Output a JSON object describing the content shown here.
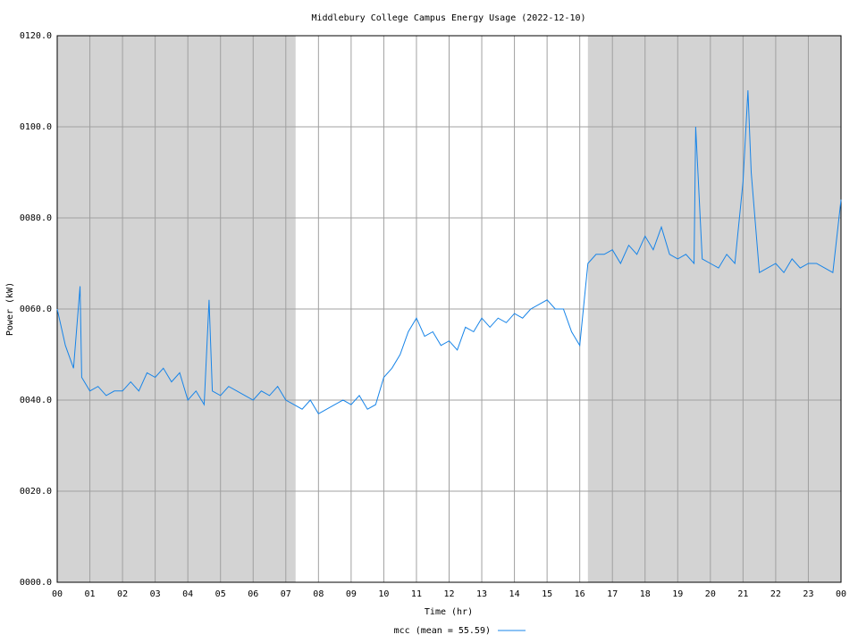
{
  "chart_data": {
    "type": "line",
    "title": "Middlebury College Campus Energy Usage (2022-12-10)",
    "x_label": "Time (hr)",
    "y_label": "Power (kW)",
    "xlim": [
      0,
      24
    ],
    "ylim": [
      0,
      120
    ],
    "xticks": [
      {
        "value": 0,
        "label": "00"
      },
      {
        "value": 1,
        "label": "01"
      },
      {
        "value": 2,
        "label": "02"
      },
      {
        "value": 3,
        "label": "03"
      },
      {
        "value": 4,
        "label": "04"
      },
      {
        "value": 5,
        "label": "05"
      },
      {
        "value": 6,
        "label": "06"
      },
      {
        "value": 7,
        "label": "07"
      },
      {
        "value": 8,
        "label": "08"
      },
      {
        "value": 9,
        "label": "09"
      },
      {
        "value": 10,
        "label": "10"
      },
      {
        "value": 11,
        "label": "11"
      },
      {
        "value": 12,
        "label": "12"
      },
      {
        "value": 13,
        "label": "13"
      },
      {
        "value": 14,
        "label": "14"
      },
      {
        "value": 15,
        "label": "15"
      },
      {
        "value": 16,
        "label": "16"
      },
      {
        "value": 17,
        "label": "17"
      },
      {
        "value": 18,
        "label": "18"
      },
      {
        "value": 19,
        "label": "19"
      },
      {
        "value": 20,
        "label": "20"
      },
      {
        "value": 21,
        "label": "21"
      },
      {
        "value": 22,
        "label": "22"
      },
      {
        "value": 23,
        "label": "23"
      },
      {
        "value": 24,
        "label": "00"
      }
    ],
    "yticks": [
      {
        "value": 0,
        "label": "0000.0"
      },
      {
        "value": 20,
        "label": "0020.0"
      },
      {
        "value": 40,
        "label": "0040.0"
      },
      {
        "value": 60,
        "label": "0060.0"
      },
      {
        "value": 80,
        "label": "0080.0"
      },
      {
        "value": 100,
        "label": "0100.0"
      },
      {
        "value": 120,
        "label": "0120.0"
      }
    ],
    "grid": true,
    "shaded_ranges": [
      [
        0,
        7.3
      ],
      [
        16.25,
        24
      ]
    ],
    "shade_color": "#d3d3d3",
    "x": [
      0,
      0.25,
      0.5,
      0.7,
      0.75,
      1,
      1.25,
      1.5,
      1.75,
      2,
      2.25,
      2.5,
      2.75,
      3,
      3.25,
      3.5,
      3.75,
      4,
      4.25,
      4.5,
      4.65,
      4.75,
      5,
      5.25,
      5.5,
      5.75,
      6,
      6.25,
      6.5,
      6.75,
      7,
      7.25,
      7.5,
      7.75,
      8,
      8.25,
      8.5,
      8.75,
      9,
      9.25,
      9.5,
      9.75,
      10,
      10.25,
      10.5,
      10.75,
      11,
      11.25,
      11.5,
      11.75,
      12,
      12.25,
      12.5,
      12.75,
      13,
      13.25,
      13.5,
      13.75,
      14,
      14.25,
      14.5,
      14.75,
      15,
      15.25,
      15.5,
      15.75,
      16,
      16.25,
      16.5,
      16.75,
      17,
      17.25,
      17.5,
      17.75,
      18,
      18.25,
      18.5,
      18.75,
      19,
      19.25,
      19.5,
      19.55,
      19.75,
      20,
      20.25,
      20.5,
      20.75,
      21,
      21.15,
      21.25,
      21.5,
      21.75,
      22,
      22.25,
      22.5,
      22.75,
      23,
      23.25,
      23.5,
      23.75,
      24
    ],
    "series": [
      {
        "name": "mcc (mean = 55.59)",
        "color": "#1784e8",
        "values": [
          60,
          52,
          47,
          65,
          45,
          42,
          43,
          41,
          42,
          42,
          44,
          42,
          46,
          45,
          47,
          44,
          46,
          40,
          42,
          39,
          62,
          42,
          41,
          43,
          42,
          41,
          40,
          42,
          41,
          43,
          40,
          39,
          38,
          40,
          37,
          38,
          39,
          40,
          39,
          41,
          38,
          39,
          45,
          47,
          50,
          55,
          58,
          54,
          55,
          52,
          53,
          51,
          56,
          55,
          58,
          56,
          58,
          57,
          59,
          58,
          60,
          61,
          62,
          60,
          60,
          55,
          52,
          70,
          72,
          72,
          73,
          70,
          74,
          72,
          76,
          73,
          78,
          72,
          71,
          72,
          70,
          100,
          71,
          70,
          69,
          72,
          70,
          88,
          108,
          90,
          68,
          69,
          70,
          68,
          71,
          69,
          70,
          70,
          69,
          68,
          84
        ]
      }
    ]
  }
}
